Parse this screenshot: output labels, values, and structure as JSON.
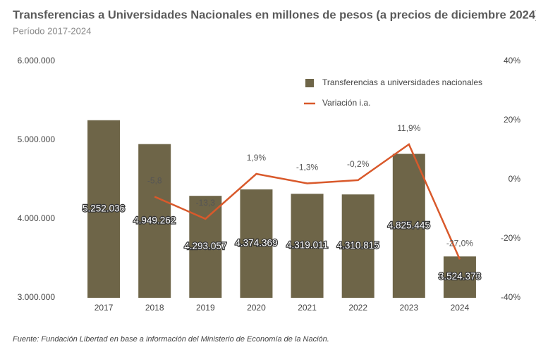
{
  "chart_data": {
    "type": "bar_line",
    "title": "Transferencias a Universidades Nacionales en millones de pesos (a precios de diciembre 2024)",
    "subtitle": "Período 2017-2024",
    "footnote": "Fuente: Fundación Libertad en base a información del Ministerio de Economía de la Nación.",
    "categories": [
      "2017",
      "2018",
      "2019",
      "2020",
      "2021",
      "2022",
      "2023",
      "2024"
    ],
    "series": [
      {
        "name": "Transferencias a universidades nacionales",
        "type": "bar",
        "color": "#6e6548",
        "values": [
          5252036,
          4949262,
          4293057,
          4374369,
          4319011,
          4310815,
          4825445,
          3524373
        ],
        "value_labels": [
          "5.252.036",
          "4.949.262",
          "4.293.057",
          "4.374.369",
          "4.319.011",
          "4.310.815",
          "4.825.445",
          "3.524.373"
        ]
      },
      {
        "name": "Variación i.a.",
        "type": "line",
        "axis": "y2",
        "color": "#d9592b",
        "values": [
          null,
          -5.8,
          -13.3,
          1.9,
          -1.3,
          -0.2,
          11.9,
          -27.0
        ],
        "value_labels": [
          null,
          "-5,8",
          "-13,3",
          "1,9%",
          "-1,3%",
          "-0,2%",
          "11,9%",
          "-27,0%"
        ]
      }
    ],
    "ylim": [
      3000000,
      6000000
    ],
    "yticks": [
      {
        "value": 3000000,
        "label": "3.000.000"
      },
      {
        "value": 4000000,
        "label": "4.000.000"
      },
      {
        "value": 5000000,
        "label": "5.000.000"
      },
      {
        "value": 6000000,
        "label": "6.000.000"
      }
    ],
    "y2lim": [
      -40,
      40
    ],
    "y2ticks": [
      {
        "value": -40,
        "label": "-40%"
      },
      {
        "value": -20,
        "label": "-20%"
      },
      {
        "value": 0,
        "label": "0%"
      },
      {
        "value": 20,
        "label": "20%"
      },
      {
        "value": 40,
        "label": "40%"
      }
    ],
    "grid": false,
    "legend": "top-right"
  }
}
